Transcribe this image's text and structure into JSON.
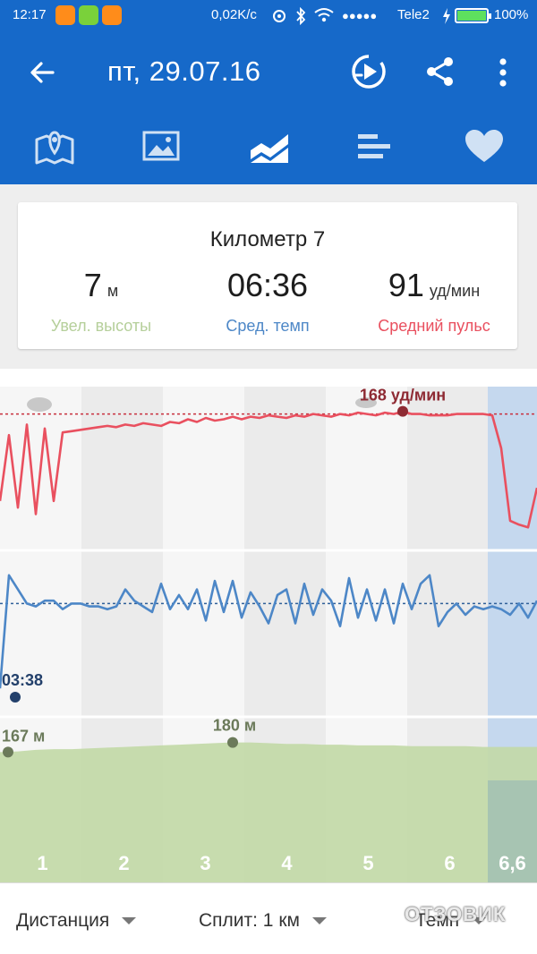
{
  "status_bar": {
    "time": "12:17",
    "speed": "0,02K/c",
    "carrier": "Tele2",
    "battery": "100%",
    "signal_dots": "●●●●●"
  },
  "app_bar": {
    "title": "пт, 29.07.16",
    "tabs": [
      {
        "icon": "map-icon",
        "selected": false
      },
      {
        "icon": "photo-icon",
        "selected": false
      },
      {
        "icon": "chart-icon",
        "selected": true
      },
      {
        "icon": "bars-icon",
        "selected": false
      },
      {
        "icon": "heart-icon",
        "selected": false
      }
    ]
  },
  "km_card": {
    "title": "Километр 7",
    "elevation": {
      "value": "7",
      "unit": "м",
      "label": "Увел. высоты",
      "color": "#b5cf9a"
    },
    "pace": {
      "value": "06:36",
      "label": "Сред. темп",
      "color": "#4d87c7"
    },
    "heart_rate": {
      "value": "91",
      "unit": "уд/мин",
      "label": "Средний пульс",
      "color": "#e9505f"
    }
  },
  "chart_data": {
    "type": "line",
    "x_labels": [
      "1",
      "2",
      "3",
      "4",
      "5",
      "6",
      "6,6"
    ],
    "highlighted_segment": "6,6",
    "colors": {
      "heart_rate": "#e9505f",
      "pace": "#4d87c7",
      "elevation": "#c2d9a6",
      "highlight": "#c5d8ee"
    },
    "heart_rate": {
      "annotation": "168 уд/мин",
      "avg_line": true,
      "values": [
        100,
        150,
        95,
        158,
        90,
        155,
        100,
        152,
        153,
        154,
        155,
        156,
        157,
        156,
        158,
        157,
        159,
        158,
        157,
        160,
        159,
        162,
        160,
        163,
        161,
        162,
        164,
        162,
        164,
        163,
        165,
        164,
        163,
        165,
        164,
        166,
        165,
        164,
        166,
        165,
        167,
        166,
        165,
        167,
        166,
        168,
        166,
        166,
        165,
        165,
        165,
        166,
        166,
        166,
        166,
        165,
        140,
        85,
        82,
        80,
        110
      ]
    },
    "pace": {
      "annotation": "03:38",
      "avg_line": true,
      "values": [
        3.5,
        7.5,
        7.0,
        6.5,
        6.4,
        6.6,
        6.6,
        6.3,
        6.5,
        6.5,
        6.4,
        6.4,
        6.3,
        6.4,
        7.0,
        6.6,
        6.4,
        6.2,
        7.2,
        6.3,
        6.8,
        6.3,
        7.0,
        5.9,
        7.3,
        6.2,
        7.3,
        6.0,
        6.9,
        6.4,
        5.8,
        6.8,
        7.0,
        5.8,
        7.2,
        6.1,
        7.0,
        6.6,
        5.7,
        7.4,
        6.0,
        7.0,
        5.9,
        7.0,
        5.8,
        7.2,
        6.3,
        7.2,
        7.5,
        5.7,
        6.2,
        6.5,
        6.1,
        6.4,
        6.3,
        6.4,
        6.3,
        6.1,
        6.5,
        6.0,
        6.6
      ]
    },
    "elevation": {
      "annotation_start": "167 м",
      "annotation_peak": "180 м",
      "values": [
        167,
        168,
        170,
        171,
        171,
        172,
        173,
        174,
        175,
        176,
        177,
        178,
        179,
        180,
        180,
        179,
        178,
        178,
        177,
        177,
        176,
        176,
        176,
        175,
        175,
        175,
        175,
        174,
        174,
        174,
        174
      ]
    }
  },
  "bottom_bar": {
    "distance_label": "Дистанция",
    "split_label": "Сплит: 1 км",
    "pace_label": "Темп"
  },
  "watermark": "ОТЗОВИК"
}
